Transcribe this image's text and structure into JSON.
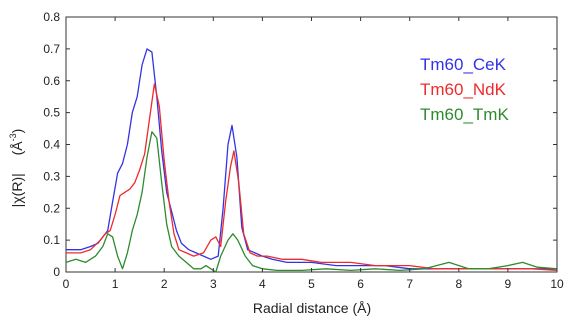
{
  "chart_data": {
    "type": "line",
    "title": "",
    "xlabel": "Radial distance   (Å)",
    "ylabel_main": "|χ(R)|",
    "ylabel_unit_base": "(Å",
    "ylabel_unit_exp": "-3",
    "ylabel_unit_close": ")",
    "xlim": [
      0,
      10
    ],
    "ylim": [
      0,
      0.8
    ],
    "xticks": [
      "0",
      "1",
      "2",
      "3",
      "4",
      "5",
      "6",
      "7",
      "8",
      "9",
      "10"
    ],
    "yticks": [
      "0",
      "0.1",
      "0.2",
      "0.3",
      "0.4",
      "0.5",
      "0.6",
      "0.7",
      "0.8"
    ],
    "grid": false,
    "legend_position": "top-right",
    "series": [
      {
        "name": "Tm60_CeK",
        "color": "#3333e6",
        "points": [
          [
            0,
            0.07
          ],
          [
            0.3,
            0.07
          ],
          [
            0.5,
            0.08
          ],
          [
            0.65,
            0.09
          ],
          [
            0.75,
            0.11
          ],
          [
            0.85,
            0.13
          ],
          [
            0.95,
            0.22
          ],
          [
            1.05,
            0.31
          ],
          [
            1.15,
            0.34
          ],
          [
            1.25,
            0.4
          ],
          [
            1.35,
            0.5
          ],
          [
            1.45,
            0.55
          ],
          [
            1.55,
            0.65
          ],
          [
            1.65,
            0.7
          ],
          [
            1.75,
            0.69
          ],
          [
            1.85,
            0.55
          ],
          [
            1.95,
            0.38
          ],
          [
            2.05,
            0.25
          ],
          [
            2.15,
            0.19
          ],
          [
            2.25,
            0.13
          ],
          [
            2.35,
            0.09
          ],
          [
            2.5,
            0.07
          ],
          [
            2.65,
            0.06
          ],
          [
            2.8,
            0.05
          ],
          [
            2.95,
            0.04
          ],
          [
            3.1,
            0.05
          ],
          [
            3.2,
            0.2
          ],
          [
            3.3,
            0.4
          ],
          [
            3.38,
            0.46
          ],
          [
            3.48,
            0.36
          ],
          [
            3.58,
            0.14
          ],
          [
            3.7,
            0.07
          ],
          [
            3.85,
            0.06
          ],
          [
            4.0,
            0.05
          ],
          [
            4.2,
            0.04
          ],
          [
            4.5,
            0.03
          ],
          [
            5.0,
            0.03
          ],
          [
            5.5,
            0.02
          ],
          [
            6.0,
            0.02
          ],
          [
            6.5,
            0.02
          ],
          [
            7.0,
            0.01
          ],
          [
            7.5,
            0.01
          ],
          [
            8.0,
            0.01
          ],
          [
            8.5,
            0.01
          ],
          [
            9.0,
            0.01
          ],
          [
            9.5,
            0.01
          ],
          [
            10,
            0.01
          ]
        ]
      },
      {
        "name": "Tm60_NdK",
        "color": "#ee2b2b",
        "points": [
          [
            0,
            0.06
          ],
          [
            0.3,
            0.06
          ],
          [
            0.5,
            0.07
          ],
          [
            0.7,
            0.1
          ],
          [
            0.8,
            0.12
          ],
          [
            0.9,
            0.13
          ],
          [
            1.0,
            0.18
          ],
          [
            1.1,
            0.24
          ],
          [
            1.2,
            0.25
          ],
          [
            1.3,
            0.26
          ],
          [
            1.4,
            0.28
          ],
          [
            1.5,
            0.32
          ],
          [
            1.6,
            0.37
          ],
          [
            1.7,
            0.48
          ],
          [
            1.8,
            0.59
          ],
          [
            1.9,
            0.52
          ],
          [
            2.0,
            0.35
          ],
          [
            2.1,
            0.22
          ],
          [
            2.2,
            0.12
          ],
          [
            2.3,
            0.07
          ],
          [
            2.45,
            0.06
          ],
          [
            2.6,
            0.05
          ],
          [
            2.8,
            0.06
          ],
          [
            2.95,
            0.1
          ],
          [
            3.05,
            0.11
          ],
          [
            3.15,
            0.08
          ],
          [
            3.25,
            0.22
          ],
          [
            3.35,
            0.33
          ],
          [
            3.42,
            0.38
          ],
          [
            3.52,
            0.28
          ],
          [
            3.62,
            0.12
          ],
          [
            3.75,
            0.06
          ],
          [
            3.9,
            0.05
          ],
          [
            4.1,
            0.05
          ],
          [
            4.4,
            0.04
          ],
          [
            4.8,
            0.04
          ],
          [
            5.2,
            0.03
          ],
          [
            5.8,
            0.03
          ],
          [
            6.3,
            0.02
          ],
          [
            7.0,
            0.02
          ],
          [
            7.5,
            0.01
          ],
          [
            8.0,
            0.01
          ],
          [
            8.5,
            0.01
          ],
          [
            9.0,
            0.01
          ],
          [
            9.5,
            0.01
          ],
          [
            10,
            0.005
          ]
        ]
      },
      {
        "name": "Tm60_TmK",
        "color": "#2e8b2e",
        "points": [
          [
            0,
            0.03
          ],
          [
            0.2,
            0.04
          ],
          [
            0.4,
            0.03
          ],
          [
            0.6,
            0.05
          ],
          [
            0.75,
            0.08
          ],
          [
            0.85,
            0.12
          ],
          [
            0.95,
            0.11
          ],
          [
            1.05,
            0.05
          ],
          [
            1.15,
            0.01
          ],
          [
            1.25,
            0.06
          ],
          [
            1.35,
            0.13
          ],
          [
            1.45,
            0.18
          ],
          [
            1.55,
            0.25
          ],
          [
            1.65,
            0.36
          ],
          [
            1.75,
            0.44
          ],
          [
            1.85,
            0.42
          ],
          [
            1.95,
            0.28
          ],
          [
            2.05,
            0.15
          ],
          [
            2.15,
            0.08
          ],
          [
            2.3,
            0.05
          ],
          [
            2.45,
            0.03
          ],
          [
            2.6,
            0.01
          ],
          [
            2.75,
            0.01
          ],
          [
            2.85,
            0.02
          ],
          [
            2.95,
            0.01
          ],
          [
            3.05,
            0.0
          ],
          [
            3.15,
            0.05
          ],
          [
            3.3,
            0.1
          ],
          [
            3.4,
            0.12
          ],
          [
            3.5,
            0.1
          ],
          [
            3.65,
            0.05
          ],
          [
            3.8,
            0.02
          ],
          [
            4.0,
            0.01
          ],
          [
            4.3,
            0.005
          ],
          [
            4.8,
            0.005
          ],
          [
            5.3,
            0.01
          ],
          [
            5.8,
            0.005
          ],
          [
            6.3,
            0.01
          ],
          [
            6.8,
            0.005
          ],
          [
            7.3,
            0.01
          ],
          [
            7.8,
            0.03
          ],
          [
            8.2,
            0.01
          ],
          [
            8.6,
            0.01
          ],
          [
            9.0,
            0.02
          ],
          [
            9.3,
            0.03
          ],
          [
            9.6,
            0.015
          ],
          [
            10,
            0.01
          ]
        ]
      }
    ]
  }
}
